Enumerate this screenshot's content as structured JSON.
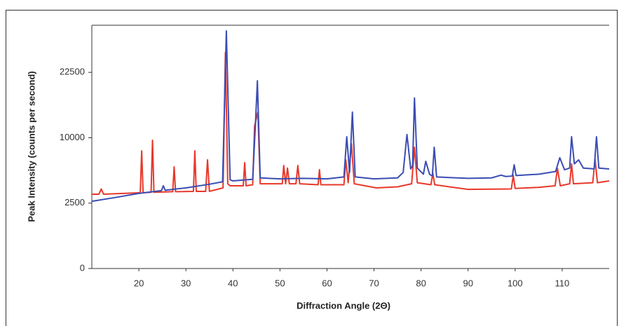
{
  "chart_data": {
    "type": "line",
    "x_label": "Diffraction Angle (2Θ)",
    "y_label": "Peak Intensity (counts per second)",
    "yscale": "sqrt",
    "xlim": [
      10,
      120
    ],
    "xticks": [
      20,
      30,
      40,
      50,
      60,
      70,
      80,
      90,
      100,
      110
    ],
    "ylim": [
      0,
      34600
    ],
    "yticks": [
      0,
      2500,
      10000,
      22500
    ],
    "series": [
      {
        "color": "#e8382b",
        "x": [
          10,
          11.5,
          12,
          12.5,
          20,
          20.3,
          20.6,
          20.9,
          22.6,
          22.9,
          23.2,
          27.2,
          27.5,
          27.8,
          31.6,
          31.9,
          32.2,
          34.2,
          34.6,
          35,
          37.9,
          38.4,
          38.9,
          39.4,
          42.2,
          42.5,
          42.8,
          44.2,
          44.6,
          45.3,
          45.8,
          50.5,
          50.8,
          51.2,
          51.6,
          52,
          53.4,
          53.8,
          54.2,
          58.1,
          58.4,
          58.7,
          63.6,
          64,
          64.5,
          65.2,
          65.8,
          70.5,
          75,
          78,
          78.6,
          79.2,
          82.1,
          82.5,
          82.9,
          90,
          99.2,
          99.6,
          100,
          105,
          108.5,
          109,
          109.6,
          111.6,
          112,
          112.4,
          116.5,
          117,
          117.5,
          120
        ],
        "values": [
          3230,
          3230,
          3700,
          3230,
          3350,
          3350,
          8100,
          3350,
          3400,
          9620,
          3400,
          3450,
          6040,
          3450,
          3480,
          8100,
          3480,
          3480,
          6900,
          3480,
          3800,
          27250,
          4200,
          4000,
          4000,
          6550,
          4000,
          4100,
          11840,
          14300,
          4200,
          4200,
          6200,
          4200,
          5900,
          4200,
          4200,
          6200,
          4200,
          4100,
          5710,
          4100,
          4100,
          6900,
          4300,
          9100,
          4200,
          3800,
          3900,
          4200,
          8600,
          4300,
          4100,
          5300,
          4100,
          3660,
          3700,
          5080,
          3750,
          3850,
          4000,
          5870,
          4000,
          4200,
          6400,
          4200,
          4300,
          7000,
          4300,
          4490
        ]
      },
      {
        "color": "#3b4db3",
        "x": [
          10,
          15,
          20,
          24.8,
          25.2,
          25.6,
          30,
          35,
          37.8,
          38.6,
          39.4,
          40,
          44.2,
          44.8,
          45.2,
          45.8,
          50,
          55,
          60,
          63.6,
          64.2,
          64.8,
          65.4,
          66,
          70,
          75,
          76.2,
          77,
          77.8,
          78.2,
          78.6,
          79.2,
          80.5,
          81,
          81.8,
          82.4,
          82.8,
          83.3,
          90,
          95,
          97,
          98,
          99.4,
          99.8,
          100.2,
          105,
          108.6,
          109.5,
          110.5,
          111.6,
          112,
          112.6,
          113.5,
          114.5,
          116.8,
          117.3,
          117.8,
          120
        ],
        "values": [
          2640,
          2950,
          3300,
          3550,
          4000,
          3580,
          3800,
          4150,
          4400,
          33000,
          4600,
          4490,
          4650,
          12400,
          20600,
          4800,
          4700,
          4750,
          4700,
          4900,
          10150,
          5400,
          14300,
          4900,
          4700,
          4800,
          5400,
          10500,
          5800,
          6200,
          17000,
          5900,
          5200,
          6720,
          5200,
          5000,
          8600,
          4900,
          4750,
          4800,
          5100,
          4950,
          5000,
          6290,
          5050,
          5200,
          5500,
          7170,
          5700,
          5900,
          10150,
          6400,
          6900,
          5900,
          5800,
          10150,
          5900,
          5790
        ]
      }
    ]
  }
}
